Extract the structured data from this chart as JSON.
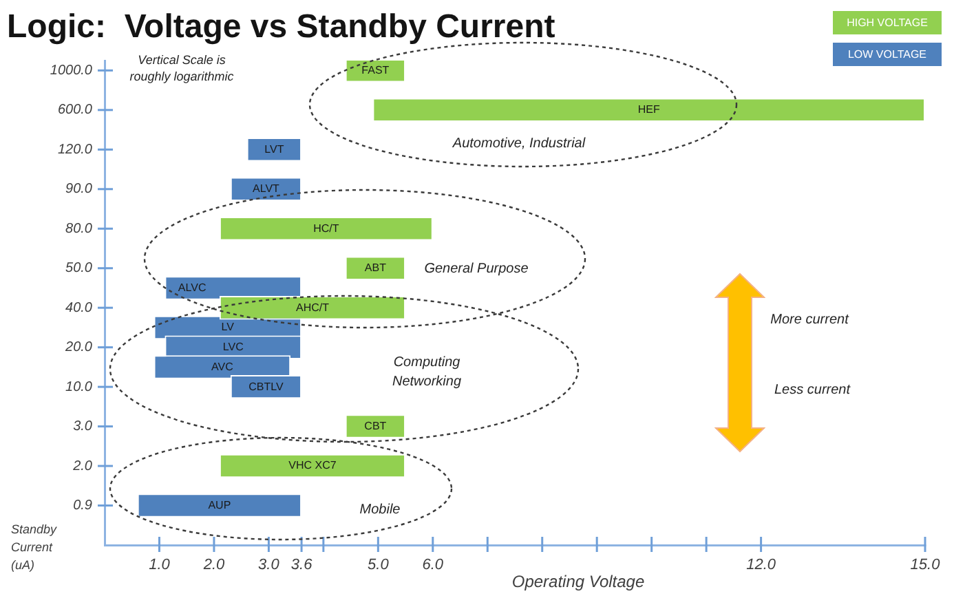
{
  "chart_data": {
    "type": "bar",
    "orientation": "horizontal",
    "title": "Logic:  Voltage vs Standby Current",
    "xlabel": "Operating Voltage",
    "ylabel": "Standby Current (uA)",
    "categories": [
      "1000.0",
      null,
      "600.0",
      null,
      "120.0",
      null,
      "90.0",
      null,
      "80.0",
      null,
      "50.0",
      null,
      "40.0",
      null,
      "20.0",
      null,
      "10.0",
      null,
      "3.0",
      null,
      "2.0",
      null,
      "0.9"
    ],
    "series": [
      {
        "name": "HIGH VOLTAGE",
        "color": "#92d050",
        "base": [
          4.4,
          null,
          4.9,
          null,
          null,
          null,
          null,
          null,
          2.1,
          null,
          4.4,
          null,
          2.1,
          null,
          null,
          null,
          null,
          null,
          4.4,
          null,
          2.1,
          null,
          null
        ],
        "values": [
          1.1,
          null,
          10.1,
          null,
          null,
          null,
          null,
          null,
          3.9,
          null,
          1.1,
          null,
          3.4,
          null,
          null,
          null,
          null,
          null,
          1.1,
          null,
          3.4,
          null,
          null
        ],
        "value_labels": [
          "FAST",
          null,
          "HEF",
          null,
          null,
          null,
          null,
          null,
          "HC/T",
          null,
          "ABT",
          null,
          "AHC/T",
          null,
          null,
          null,
          null,
          null,
          "CBT",
          null,
          "VHC XC7",
          null,
          null
        ]
      },
      {
        "name": "LOW VOLTAGE",
        "color": "#4f81bd",
        "base": [
          null,
          null,
          null,
          null,
          2.6,
          null,
          2.3,
          null,
          null,
          null,
          null,
          1.1,
          null,
          0.9,
          1.1,
          0.9,
          2.3,
          null,
          null,
          null,
          null,
          null,
          0.6
        ],
        "values": [
          null,
          null,
          null,
          null,
          1.0,
          null,
          1.3,
          null,
          null,
          null,
          null,
          2.5,
          null,
          2.7,
          2.5,
          2.5,
          1.3,
          null,
          null,
          null,
          null,
          null,
          3.0
        ],
        "value_labels": [
          null,
          null,
          null,
          null,
          "LVT",
          null,
          "ALVT",
          null,
          null,
          null,
          null,
          "ALVC",
          null,
          "LV",
          "LVC",
          "AVC",
          "CBTLV",
          null,
          null,
          null,
          null,
          null,
          "AUP"
        ]
      }
    ],
    "xlim": [
      0,
      15
    ],
    "xticks": [
      {
        "value": 1,
        "label": "1.0"
      },
      {
        "value": 2,
        "label": "2.0"
      },
      {
        "value": 3,
        "label": "3.0"
      },
      {
        "value": 3.6,
        "label": "3.6"
      },
      {
        "value": 4,
        "label": null
      },
      {
        "value": 5,
        "label": "5.0"
      },
      {
        "value": 6,
        "label": "6.0"
      },
      {
        "value": 7,
        "label": null
      },
      {
        "value": 8,
        "label": null
      },
      {
        "value": 9,
        "label": null
      },
      {
        "value": 10,
        "label": null
      },
      {
        "value": 11,
        "label": null
      },
      {
        "value": 12,
        "label": "12.0"
      },
      {
        "value": 15,
        "label": "15.0"
      }
    ],
    "legend": "top right",
    "annotations": [
      "Vertical Scale is\nroughly logarithmic",
      "Automotive, Industrial",
      "General Purpose",
      "Computing\nNetworking",
      "Mobile",
      "More current",
      "Less current"
    ]
  }
}
